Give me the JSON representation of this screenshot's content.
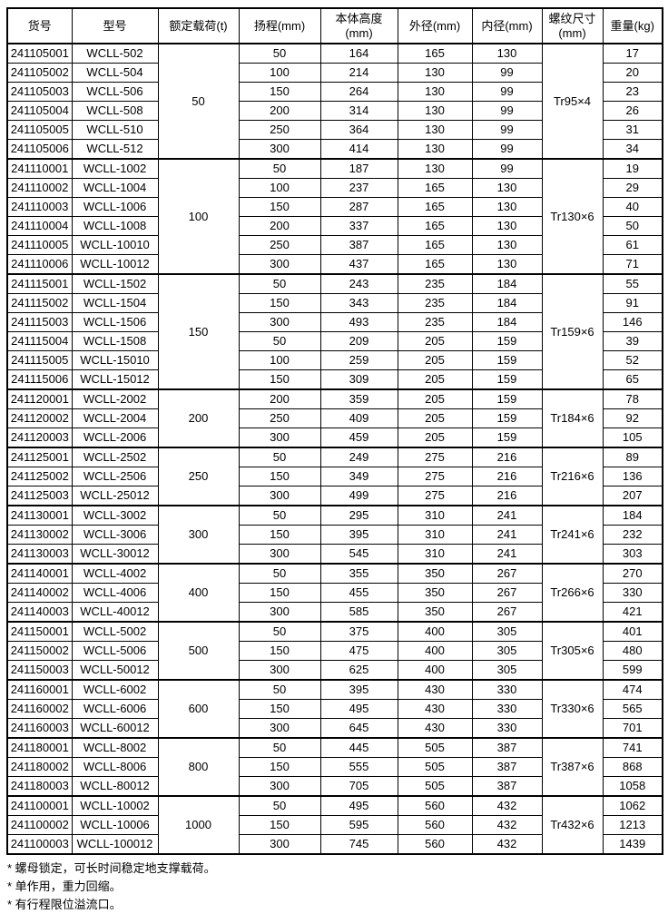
{
  "colors": {
    "border": "#000000",
    "text": "#000000",
    "background": "#ffffff"
  },
  "table": {
    "columns": [
      "货号",
      "型号",
      "额定载荷(t)",
      "扬程(mm)",
      "本体高度(mm)",
      "外径(mm)",
      "内径(mm)",
      "螺纹尺寸(mm)",
      "重量(kg)"
    ],
    "groups": [
      {
        "load": "50",
        "thread": "Tr95×4",
        "rows": [
          [
            "241105001",
            "WCLL-502",
            "50",
            "164",
            "165",
            "130",
            "17"
          ],
          [
            "241105002",
            "WCLL-504",
            "100",
            "214",
            "130",
            "99",
            "20"
          ],
          [
            "241105003",
            "WCLL-506",
            "150",
            "264",
            "130",
            "99",
            "23"
          ],
          [
            "241105004",
            "WCLL-508",
            "200",
            "314",
            "130",
            "99",
            "26"
          ],
          [
            "241105005",
            "WCLL-510",
            "250",
            "364",
            "130",
            "99",
            "31"
          ],
          [
            "241105006",
            "WCLL-512",
            "300",
            "414",
            "130",
            "99",
            "34"
          ]
        ]
      },
      {
        "load": "100",
        "thread": "Tr130×6",
        "rows": [
          [
            "241110001",
            "WCLL-1002",
            "50",
            "187",
            "130",
            "99",
            "19"
          ],
          [
            "241110002",
            "WCLL-1004",
            "100",
            "237",
            "165",
            "130",
            "29"
          ],
          [
            "241110003",
            "WCLL-1006",
            "150",
            "287",
            "165",
            "130",
            "40"
          ],
          [
            "241110004",
            "WCLL-1008",
            "200",
            "337",
            "165",
            "130",
            "50"
          ],
          [
            "241110005",
            "WCLL-10010",
            "250",
            "387",
            "165",
            "130",
            "61"
          ],
          [
            "241110006",
            "WCLL-10012",
            "300",
            "437",
            "165",
            "130",
            "71"
          ]
        ]
      },
      {
        "load": "150",
        "thread": "Tr159×6",
        "rows": [
          [
            "241115001",
            "WCLL-1502",
            "50",
            "243",
            "235",
            "184",
            "55"
          ],
          [
            "241115002",
            "WCLL-1504",
            "150",
            "343",
            "235",
            "184",
            "91"
          ],
          [
            "241115003",
            "WCLL-1506",
            "300",
            "493",
            "235",
            "184",
            "146"
          ],
          [
            "241115004",
            "WCLL-1508",
            "50",
            "209",
            "205",
            "159",
            "39"
          ],
          [
            "241115005",
            "WCLL-15010",
            "100",
            "259",
            "205",
            "159",
            "52"
          ],
          [
            "241115006",
            "WCLL-15012",
            "150",
            "309",
            "205",
            "159",
            "65"
          ]
        ]
      },
      {
        "load": "200",
        "thread": "Tr184×6",
        "rows": [
          [
            "241120001",
            "WCLL-2002",
            "200",
            "359",
            "205",
            "159",
            "78"
          ],
          [
            "241120002",
            "WCLL-2004",
            "250",
            "409",
            "205",
            "159",
            "92"
          ],
          [
            "241120003",
            "WCLL-2006",
            "300",
            "459",
            "205",
            "159",
            "105"
          ]
        ]
      },
      {
        "load": "250",
        "thread": "Tr216×6",
        "rows": [
          [
            "241125001",
            "WCLL-2502",
            "50",
            "249",
            "275",
            "216",
            "89"
          ],
          [
            "241125002",
            "WCLL-2506",
            "150",
            "349",
            "275",
            "216",
            "136"
          ],
          [
            "241125003",
            "WCLL-25012",
            "300",
            "499",
            "275",
            "216",
            "207"
          ]
        ]
      },
      {
        "load": "300",
        "thread": "Tr241×6",
        "rows": [
          [
            "241130001",
            "WCLL-3002",
            "50",
            "295",
            "310",
            "241",
            "184"
          ],
          [
            "241130002",
            "WCLL-3006",
            "150",
            "395",
            "310",
            "241",
            "232"
          ],
          [
            "241130003",
            "WCLL-30012",
            "300",
            "545",
            "310",
            "241",
            "303"
          ]
        ]
      },
      {
        "load": "400",
        "thread": "Tr266×6",
        "rows": [
          [
            "241140001",
            "WCLL-4002",
            "50",
            "355",
            "350",
            "267",
            "270"
          ],
          [
            "241140002",
            "WCLL-4006",
            "150",
            "455",
            "350",
            "267",
            "330"
          ],
          [
            "241140003",
            "WCLL-40012",
            "300",
            "585",
            "350",
            "267",
            "421"
          ]
        ]
      },
      {
        "load": "500",
        "thread": "Tr305×6",
        "rows": [
          [
            "241150001",
            "WCLL-5002",
            "50",
            "375",
            "400",
            "305",
            "401"
          ],
          [
            "241150002",
            "WCLL-5006",
            "150",
            "475",
            "400",
            "305",
            "480"
          ],
          [
            "241150003",
            "WCLL-50012",
            "300",
            "625",
            "400",
            "305",
            "599"
          ]
        ]
      },
      {
        "load": "600",
        "thread": "Tr330×6",
        "rows": [
          [
            "241160001",
            "WCLL-6002",
            "50",
            "395",
            "430",
            "330",
            "474"
          ],
          [
            "241160002",
            "WCLL-6006",
            "150",
            "495",
            "430",
            "330",
            "565"
          ],
          [
            "241160003",
            "WCLL-60012",
            "300",
            "645",
            "430",
            "330",
            "701"
          ]
        ]
      },
      {
        "load": "800",
        "thread": "Tr387×6",
        "rows": [
          [
            "241180001",
            "WCLL-8002",
            "50",
            "445",
            "505",
            "387",
            "741"
          ],
          [
            "241180002",
            "WCLL-8006",
            "150",
            "555",
            "505",
            "387",
            "868"
          ],
          [
            "241180003",
            "WCLL-80012",
            "300",
            "705",
            "505",
            "387",
            "1058"
          ]
        ]
      },
      {
        "load": "1000",
        "thread": "Tr432×6",
        "rows": [
          [
            "241100001",
            "WCLL-10002",
            "50",
            "495",
            "560",
            "432",
            "1062"
          ],
          [
            "241100002",
            "WCLL-10006",
            "150",
            "595",
            "560",
            "432",
            "1213"
          ],
          [
            "241100003",
            "WCLL-100012",
            "300",
            "745",
            "560",
            "432",
            "1439"
          ]
        ]
      }
    ]
  },
  "footnotes": [
    "* 螺母锁定，可长时间稳定地支撑载荷。",
    "* 单作用，重力回缩。",
    "* 有行程限位溢流口。"
  ]
}
